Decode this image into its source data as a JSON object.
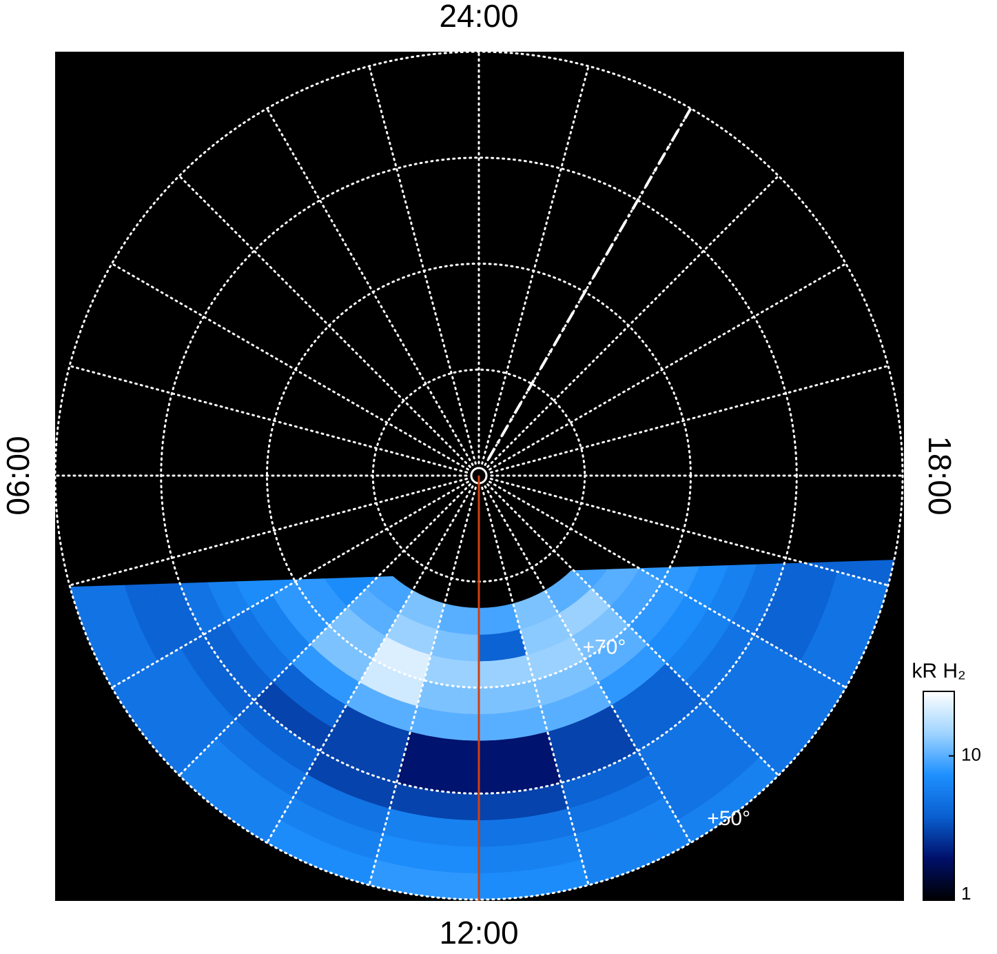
{
  "chart_data": {
    "type": "polar_map",
    "lt_labels": [
      {
        "value": 24,
        "label": "24:00"
      },
      {
        "value": 6,
        "label": "06:00"
      },
      {
        "value": 18,
        "label": "18:00"
      },
      {
        "value": 12,
        "label": "12:00"
      }
    ],
    "lat_circles": [
      80,
      70,
      60,
      50
    ],
    "lat_labels": [
      {
        "value": 70,
        "label": "+70°"
      },
      {
        "value": 50,
        "label": "+50°"
      }
    ],
    "meridian_step_hours": 1,
    "dashed_meridian_lt": 22,
    "red_meridian_lt": 12,
    "lt_edges": [
      6,
      7,
      8,
      9,
      10,
      11,
      12,
      13,
      14,
      15,
      16,
      17,
      18
    ],
    "lat_edges": [
      50,
      52.5,
      55,
      57.5,
      60,
      62.5,
      65,
      67.5,
      70,
      72.5,
      75,
      77.5
    ],
    "intensity": [
      [
        4,
        5,
        5,
        6,
        7,
        8,
        7,
        6,
        6,
        5,
        5,
        4
      ],
      [
        4,
        5,
        5,
        6,
        6,
        7,
        6,
        6,
        5,
        5,
        5,
        4
      ],
      [
        4,
        4,
        5,
        5,
        5,
        6,
        5,
        5,
        5,
        5,
        4,
        4
      ],
      [
        5,
        4,
        4,
        4,
        3,
        3,
        3,
        4,
        5,
        5,
        4,
        4
      ],
      [
        5,
        5,
        4,
        3,
        3,
        2,
        2,
        3,
        4,
        5,
        5,
        5
      ],
      [
        6,
        6,
        5,
        4,
        3,
        2,
        2,
        3,
        4,
        6,
        6,
        6
      ],
      [
        7,
        7,
        6,
        8,
        10,
        10,
        10,
        10,
        8,
        7,
        7,
        7
      ],
      [
        7,
        7,
        8,
        12,
        20,
        12,
        12,
        12,
        10,
        8,
        8,
        8
      ],
      [
        7,
        7,
        8,
        12,
        22,
        14,
        14,
        14,
        12,
        9,
        8,
        7
      ],
      [
        6,
        6,
        7,
        10,
        14,
        12,
        4,
        13,
        14,
        10,
        8,
        7
      ],
      [
        6,
        6,
        7,
        9,
        12,
        10,
        9,
        12,
        10,
        9,
        8,
        7
      ]
    ],
    "colorbar": {
      "label": "kR H₂",
      "scale": "log",
      "lim": [
        1,
        28
      ],
      "ticks": [
        1,
        10
      ],
      "colormap": [
        "#000000",
        "#00106a",
        "#0a5fd0",
        "#1e90ff",
        "#9fd4ff",
        "#ffffff"
      ]
    }
  }
}
